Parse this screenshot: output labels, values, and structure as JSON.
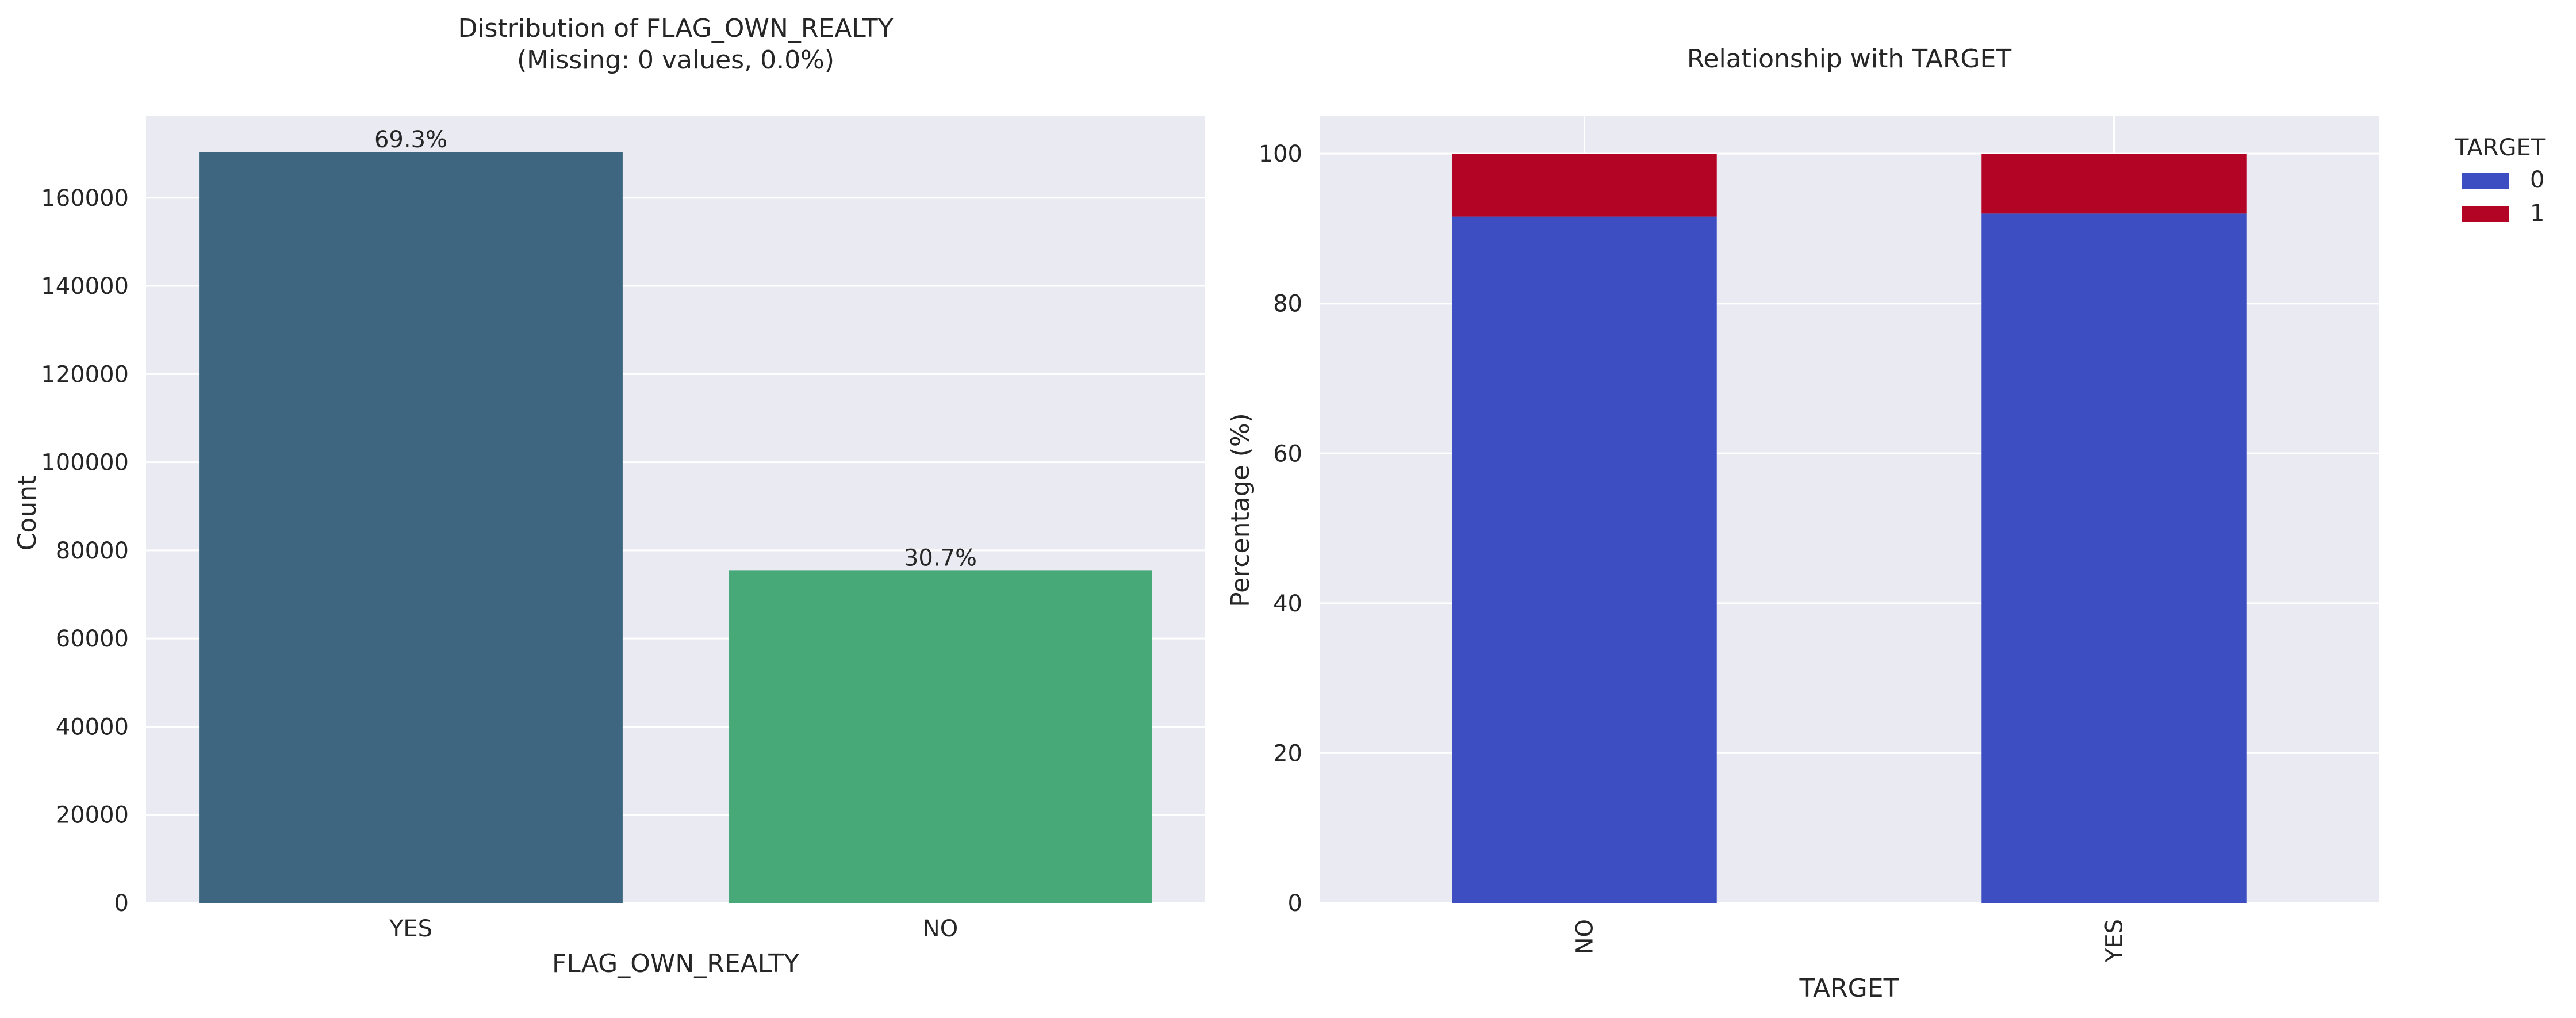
{
  "chart_data": [
    {
      "type": "bar",
      "title": "Distribution of FLAG_OWN_REALTY",
      "subtitle": "(Missing: 0 values, 0.0%)",
      "xlabel": "FLAG_OWN_REALTY",
      "ylabel": "Count",
      "categories": [
        "YES",
        "NO"
      ],
      "values": [
        170400,
        75500
      ],
      "data_labels": [
        "69.3%",
        "30.7%"
      ],
      "colors": [
        "#3e6680",
        "#47a878"
      ],
      "ylim": [
        0,
        178500
      ],
      "yticks": [
        0,
        20000,
        40000,
        60000,
        80000,
        100000,
        120000,
        140000,
        160000
      ],
      "grid": true,
      "background": "#eaeaf2"
    },
    {
      "type": "bar",
      "stacked": true,
      "title": "Relationship with TARGET",
      "xlabel": "TARGET",
      "ylabel": "Percentage (%)",
      "categories": [
        "NO",
        "YES"
      ],
      "series": [
        {
          "name": "0",
          "values": [
            91.6,
            92.0
          ],
          "color": "#3c4ec2"
        },
        {
          "name": "1",
          "values": [
            8.4,
            8.0
          ],
          "color": "#b40426"
        }
      ],
      "ylim": [
        0,
        105
      ],
      "yticks": [
        0,
        20,
        40,
        60,
        80,
        100
      ],
      "legend": {
        "title": "TARGET",
        "position": "outside-right"
      },
      "grid": true,
      "background": "#eaeaf2"
    }
  ]
}
